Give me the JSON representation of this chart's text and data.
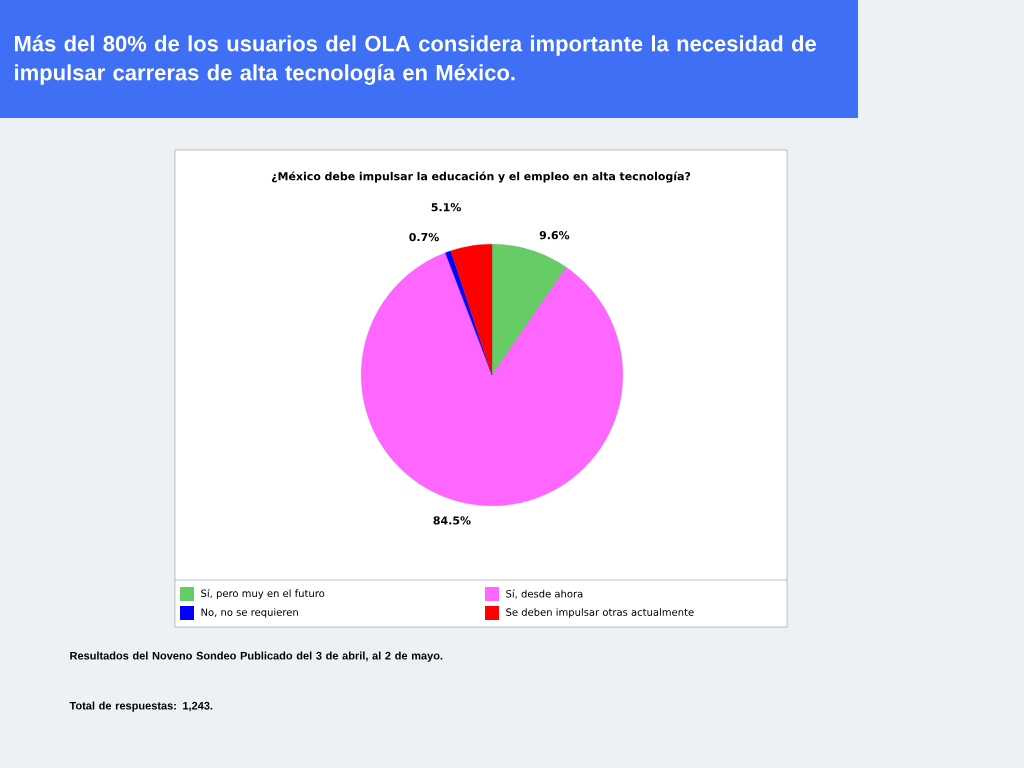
{
  "chart_data": {
    "type": "pie",
    "title": "Más del 80% de los usuarios del OLA considera importante la necesidad de impulsar carreras de alta tecnología en México.",
    "subtitle": "¿México debe impulsar la educación y el empleo en alta tecnología?",
    "categories": [
      "Sí, pero muy en el futuro",
      "Sí, desde ahora",
      "No, no se requieren",
      "Se deben impulsar otras actualmente"
    ],
    "values": [
      9.6,
      84.5,
      0.7,
      5.1
    ],
    "colors": [
      "#66cc66",
      "#ff66ff",
      "#0000ff",
      "#ff0000"
    ],
    "value_labels": [
      "9.6%",
      "84.5%",
      "0.7%",
      "5.1%"
    ],
    "legend": "bottom",
    "annotations": [
      "Resultados del Noveno Sondeo Publicado del 3 de abril, al 2 de mayo.",
      "Total de respuestas: 1,243."
    ]
  }
}
